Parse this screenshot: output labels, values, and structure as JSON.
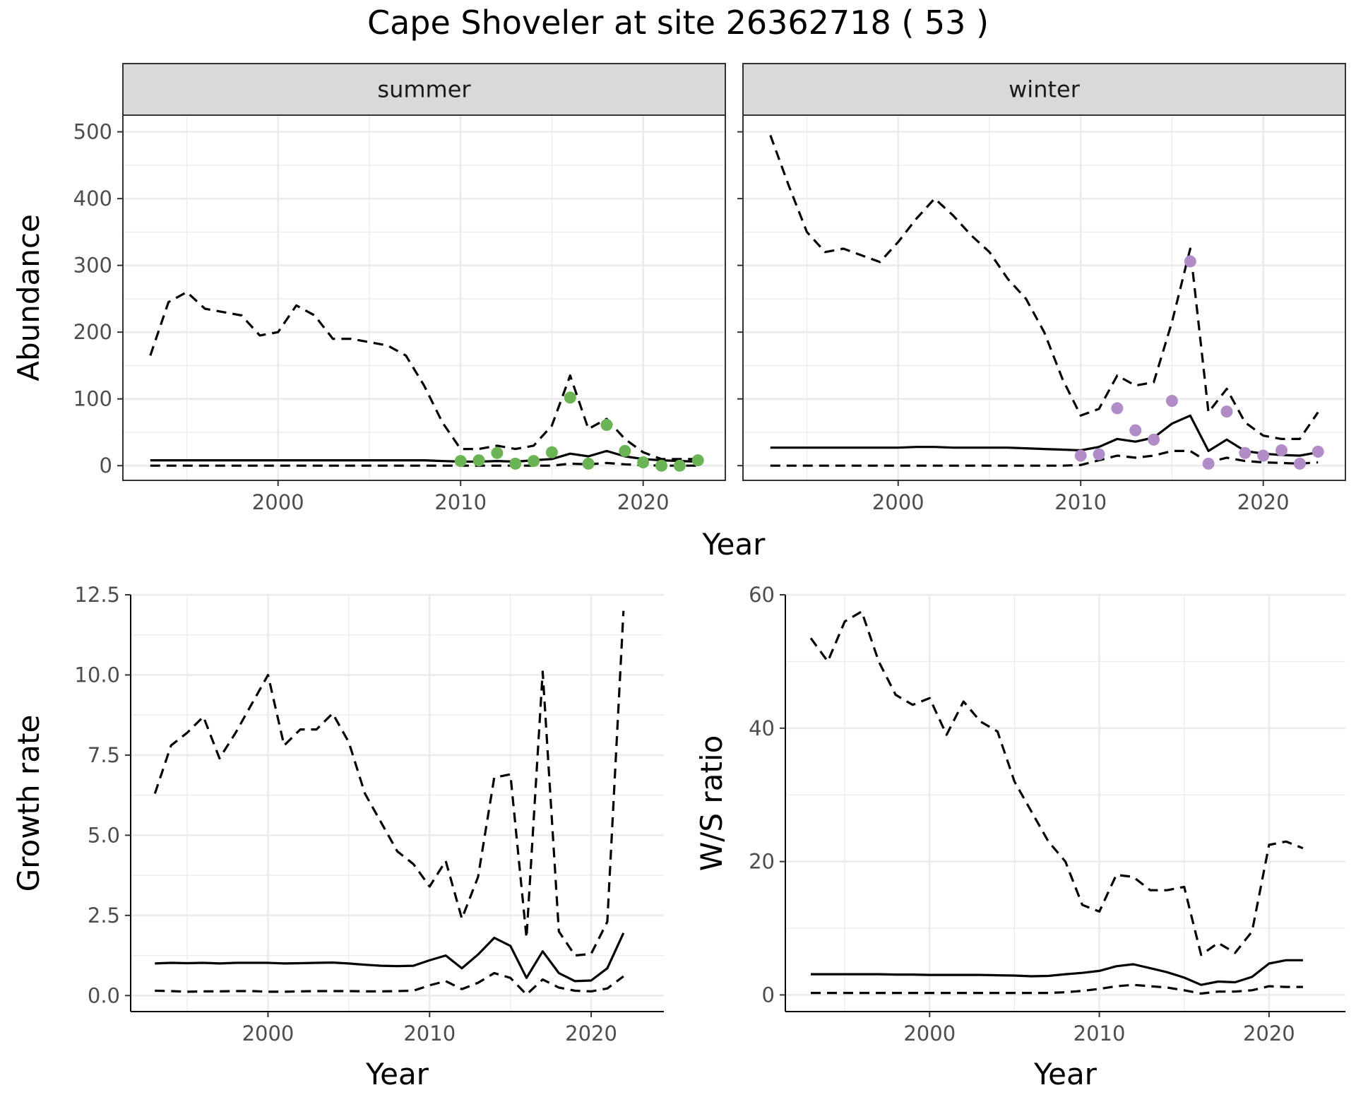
{
  "title": "Cape Shoveler at site 26362718 ( 53 )",
  "colors": {
    "summer_points": "#6bb456",
    "winter_points": "#b28cc7",
    "lines": "#000000"
  },
  "chart_data": [
    {
      "id": "abundance_summer",
      "type": "line",
      "facet": "summer",
      "ylabel": "Abundance",
      "xlabel": "Year",
      "xlim": [
        1991.5,
        2024.5
      ],
      "ylim": [
        -22,
        525
      ],
      "xticks": [
        2000,
        2010,
        2020
      ],
      "xtick_labels": [
        "2000",
        "2010",
        "2020"
      ],
      "yticks": [
        0,
        100,
        200,
        300,
        400,
        500
      ],
      "ytick_labels": [
        "0",
        "100",
        "200",
        "300",
        "400",
        "500"
      ],
      "grid": true,
      "x": [
        1993,
        1994,
        1995,
        1996,
        1997,
        1998,
        1999,
        2000,
        2001,
        2002,
        2003,
        2004,
        2005,
        2006,
        2007,
        2008,
        2009,
        2010,
        2011,
        2012,
        2013,
        2014,
        2015,
        2016,
        2017,
        2018,
        2019,
        2020,
        2021,
        2022,
        2023
      ],
      "series": [
        {
          "role": "estimate",
          "style": "solid",
          "values": [
            8,
            8,
            8,
            8,
            8,
            8,
            8,
            8,
            8,
            8,
            8,
            8,
            8,
            8,
            8,
            8,
            7,
            6,
            6,
            7,
            6,
            8,
            10,
            18,
            14,
            22,
            14,
            10,
            8,
            7,
            6
          ]
        },
        {
          "role": "upper",
          "style": "dashed",
          "values": [
            165,
            245,
            260,
            235,
            230,
            225,
            195,
            200,
            240,
            225,
            190,
            190,
            185,
            180,
            165,
            120,
            65,
            25,
            25,
            30,
            25,
            30,
            60,
            135,
            55,
            70,
            40,
            20,
            10,
            10,
            10
          ]
        },
        {
          "role": "lower",
          "style": "dashed",
          "values": [
            0,
            0,
            0,
            0,
            0,
            0,
            0,
            0,
            0,
            0,
            0,
            0,
            0,
            0,
            0,
            0,
            0,
            0,
            0,
            0,
            0,
            0,
            0,
            3,
            2,
            4,
            2,
            1,
            0,
            0,
            0
          ]
        }
      ],
      "points": {
        "x": [
          2010,
          2011,
          2012,
          2013,
          2014,
          2015,
          2016,
          2017,
          2018,
          2019,
          2020,
          2021,
          2022,
          2023
        ],
        "y": [
          7,
          8,
          19,
          3,
          7,
          20,
          102,
          3,
          61,
          22,
          5,
          0,
          0,
          8
        ]
      }
    },
    {
      "id": "abundance_winter",
      "type": "line",
      "facet": "winter",
      "ylabel": "Abundance",
      "xlabel": "Year",
      "xlim": [
        1991.5,
        2024.5
      ],
      "ylim": [
        -22,
        525
      ],
      "xticks": [
        2000,
        2010,
        2020
      ],
      "xtick_labels": [
        "2000",
        "2010",
        "2020"
      ],
      "yticks": [
        0,
        100,
        200,
        300,
        400,
        500
      ],
      "ytick_labels": [
        "0",
        "100",
        "200",
        "300",
        "400",
        "500"
      ],
      "grid": true,
      "x": [
        1993,
        1994,
        1995,
        1996,
        1997,
        1998,
        1999,
        2000,
        2001,
        2002,
        2003,
        2004,
        2005,
        2006,
        2007,
        2008,
        2009,
        2010,
        2011,
        2012,
        2013,
        2014,
        2015,
        2016,
        2017,
        2018,
        2019,
        2020,
        2021,
        2022,
        2023
      ],
      "series": [
        {
          "role": "estimate",
          "style": "solid",
          "values": [
            27,
            27,
            27,
            27,
            27,
            27,
            27,
            27,
            28,
            28,
            27,
            27,
            27,
            27,
            26,
            25,
            24,
            23,
            28,
            40,
            36,
            42,
            63,
            75,
            22,
            39,
            22,
            18,
            16,
            15,
            20
          ]
        },
        {
          "role": "upper",
          "style": "dashed",
          "values": [
            495,
            420,
            350,
            320,
            325,
            315,
            305,
            335,
            370,
            400,
            375,
            345,
            320,
            280,
            250,
            200,
            130,
            75,
            85,
            135,
            120,
            125,
            215,
            325,
            80,
            115,
            65,
            45,
            40,
            40,
            80
          ]
        },
        {
          "role": "lower",
          "style": "dashed",
          "values": [
            0,
            0,
            0,
            0,
            0,
            0,
            0,
            0,
            0,
            0,
            0,
            0,
            0,
            0,
            0,
            0,
            0,
            1,
            8,
            15,
            12,
            15,
            22,
            22,
            5,
            12,
            7,
            5,
            4,
            3,
            5
          ]
        }
      ],
      "points": {
        "x": [
          2010,
          2011,
          2012,
          2013,
          2014,
          2015,
          2016,
          2017,
          2018,
          2019,
          2020,
          2021,
          2022,
          2023
        ],
        "y": [
          15,
          17,
          86,
          53,
          39,
          97,
          306,
          3,
          81,
          19,
          15,
          23,
          3,
          21
        ]
      }
    },
    {
      "id": "growth_rate",
      "type": "line",
      "ylabel": "Growth rate",
      "xlabel": "Year",
      "xlim": [
        1991.5,
        2024.5
      ],
      "ylim": [
        -0.5,
        12.5
      ],
      "xticks": [
        2000,
        2010,
        2020
      ],
      "xtick_labels": [
        "2000",
        "2010",
        "2020"
      ],
      "yticks": [
        0,
        2.5,
        5,
        7.5,
        10,
        12.5
      ],
      "ytick_labels": [
        "0.0",
        "2.5",
        "5.0",
        "7.5",
        "10.0",
        "12.5"
      ],
      "grid": true,
      "x": [
        1993,
        1994,
        1995,
        1996,
        1997,
        1998,
        1999,
        2000,
        2001,
        2002,
        2003,
        2004,
        2005,
        2006,
        2007,
        2008,
        2009,
        2010,
        2011,
        2012,
        2013,
        2014,
        2015,
        2016,
        2017,
        2018,
        2019,
        2020,
        2021,
        2022
      ],
      "series": [
        {
          "role": "estimate",
          "style": "solid",
          "values": [
            1.0,
            1.02,
            1.01,
            1.02,
            1.0,
            1.02,
            1.02,
            1.02,
            1.0,
            1.01,
            1.02,
            1.03,
            1.0,
            0.96,
            0.93,
            0.92,
            0.93,
            1.1,
            1.25,
            0.85,
            1.28,
            1.8,
            1.55,
            0.55,
            1.38,
            0.7,
            0.45,
            0.47,
            0.85,
            1.95
          ]
        },
        {
          "role": "upper",
          "style": "dashed",
          "values": [
            6.3,
            7.8,
            8.2,
            8.7,
            7.4,
            8.2,
            9.1,
            10.0,
            7.8,
            8.3,
            8.3,
            8.8,
            7.9,
            6.3,
            5.4,
            4.5,
            4.1,
            3.4,
            4.2,
            2.4,
            3.7,
            6.8,
            6.9,
            1.8,
            10.1,
            2.0,
            1.25,
            1.3,
            2.3,
            12.0
          ]
        },
        {
          "role": "lower",
          "style": "dashed",
          "values": [
            0.15,
            0.14,
            0.12,
            0.13,
            0.13,
            0.14,
            0.14,
            0.12,
            0.12,
            0.13,
            0.14,
            0.14,
            0.14,
            0.13,
            0.13,
            0.14,
            0.15,
            0.32,
            0.45,
            0.2,
            0.4,
            0.7,
            0.55,
            0.03,
            0.5,
            0.25,
            0.15,
            0.13,
            0.22,
            0.6
          ]
        }
      ]
    },
    {
      "id": "ws_ratio",
      "type": "line",
      "ylabel": "W/S ratio",
      "xlabel": "Year",
      "xlim": [
        1991.5,
        2024.5
      ],
      "ylim": [
        -2.5,
        60
      ],
      "xticks": [
        2000,
        2010,
        2020
      ],
      "xtick_labels": [
        "2000",
        "2010",
        "2020"
      ],
      "yticks": [
        0,
        20,
        40,
        60
      ],
      "ytick_labels": [
        "0",
        "20",
        "40",
        "60"
      ],
      "grid": true,
      "x": [
        1993,
        1994,
        1995,
        1996,
        1997,
        1998,
        1999,
        2000,
        2001,
        2002,
        2003,
        2004,
        2005,
        2006,
        2007,
        2008,
        2009,
        2010,
        2011,
        2012,
        2013,
        2014,
        2015,
        2016,
        2017,
        2018,
        2019,
        2020,
        2021,
        2022
      ],
      "series": [
        {
          "role": "estimate",
          "style": "solid",
          "values": [
            3.1,
            3.1,
            3.1,
            3.1,
            3.1,
            3.05,
            3.05,
            3.0,
            3.0,
            3.0,
            3.0,
            2.95,
            2.9,
            2.8,
            2.85,
            3.1,
            3.3,
            3.6,
            4.3,
            4.6,
            4.0,
            3.4,
            2.6,
            1.5,
            2.0,
            1.9,
            2.7,
            4.7,
            5.2,
            5.2
          ]
        },
        {
          "role": "upper",
          "style": "dashed",
          "values": [
            53.5,
            50,
            56,
            57.5,
            50,
            45,
            43.5,
            44.5,
            39,
            44,
            41,
            39.5,
            32,
            27.5,
            23,
            20,
            13.5,
            12.5,
            18,
            17.7,
            15.7,
            15.7,
            16.2,
            6,
            7.8,
            6.3,
            9.5,
            22.5,
            23,
            22
          ]
        },
        {
          "role": "lower",
          "style": "dashed",
          "values": [
            0.3,
            0.3,
            0.3,
            0.3,
            0.3,
            0.3,
            0.3,
            0.3,
            0.3,
            0.3,
            0.3,
            0.3,
            0.3,
            0.3,
            0.3,
            0.4,
            0.6,
            0.9,
            1.3,
            1.5,
            1.3,
            1.1,
            0.7,
            0.2,
            0.5,
            0.5,
            0.7,
            1.3,
            1.2,
            1.2
          ]
        }
      ]
    }
  ]
}
